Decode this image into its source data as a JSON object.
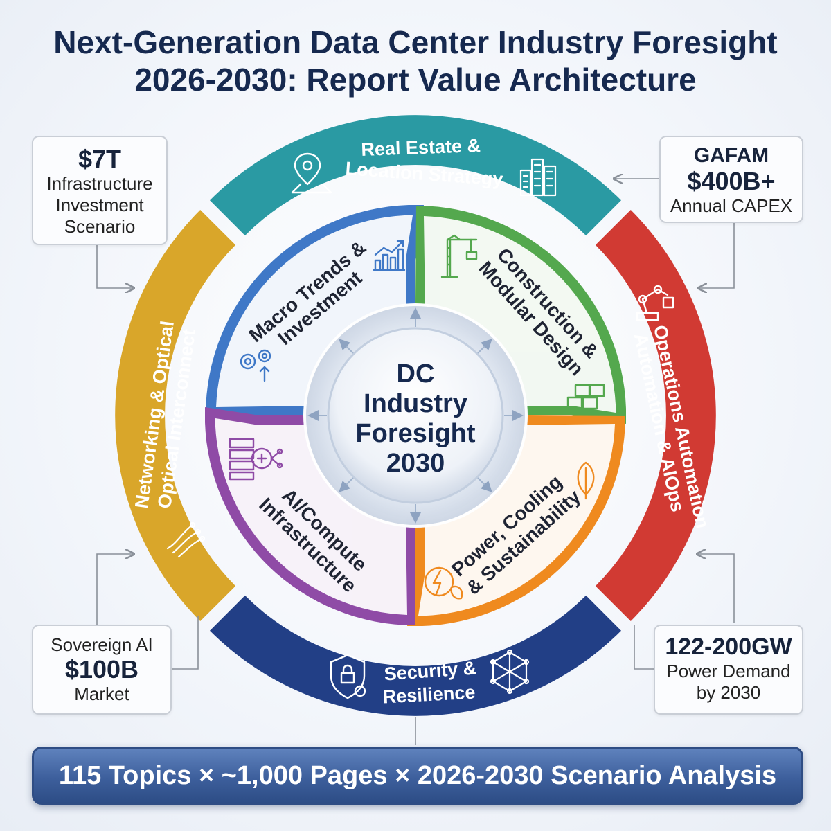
{
  "title": {
    "line1": "Next-Generation Data Center Industry Foresight",
    "line2": "2026-2030: Report Value Architecture"
  },
  "center": {
    "lines": [
      "DC",
      "Industry",
      "Foresight",
      "2030"
    ]
  },
  "outer_ring": [
    {
      "id": "real-estate",
      "lines": [
        "Real Estate &",
        "Location Strategy"
      ],
      "color": "#2a9aa3",
      "icons": [
        "map-pin-icon",
        "city-buildings-icon"
      ]
    },
    {
      "id": "operations",
      "lines": [
        "Operations Automation",
        "Automation & AIOps"
      ],
      "color": "#d13a33",
      "icons": [
        "robot-arm-icon"
      ]
    },
    {
      "id": "security",
      "lines": [
        "Security &",
        "Resilience"
      ],
      "color": "#223f86",
      "icons": [
        "shield-lock-icon",
        "network-cube-icon"
      ]
    },
    {
      "id": "networking",
      "lines": [
        "Networking & Optical",
        "Optical Interconnect"
      ],
      "color": "#d9a62a",
      "icons": [
        "fiber-optic-icon"
      ]
    }
  ],
  "inner_ring": [
    {
      "id": "macro",
      "lines": [
        "Macro Trends &",
        "Investment"
      ],
      "color": "#3f78c7",
      "icons": [
        "growth-chart-icon",
        "gears-icon"
      ]
    },
    {
      "id": "construction",
      "lines": [
        "Construction &",
        "Modular Design"
      ],
      "color": "#54a84e",
      "icons": [
        "crane-icon",
        "modular-blocks-icon"
      ]
    },
    {
      "id": "power",
      "lines": [
        "Power, Cooling",
        "& Sustainability"
      ],
      "color": "#ef8a1f",
      "icons": [
        "leaf-icon",
        "lightning-leaf-icon"
      ]
    },
    {
      "id": "ai",
      "lines": [
        "AI/Compute",
        "Infrastructure"
      ],
      "color": "#8f4ba6",
      "icons": [
        "server-brain-icon"
      ]
    }
  ],
  "stat_cards": {
    "top_left": {
      "big": "$7T",
      "lines": [
        "Infrastructure",
        "Investment",
        "Scenario"
      ]
    },
    "top_right": {
      "top": "GAFAM",
      "big": "$400B+",
      "bottom": "Annual CAPEX"
    },
    "bottom_left": {
      "top": "Sovereign AI",
      "big": "$100B",
      "bottom": "Market"
    },
    "bottom_right": {
      "big": "122-200GW",
      "lines": [
        "Power Demand",
        "by 2030"
      ]
    }
  },
  "bottom_bar": {
    "text": "115 Topics × ~1,000 Pages × 2026-2030 Scenario Analysis"
  }
}
